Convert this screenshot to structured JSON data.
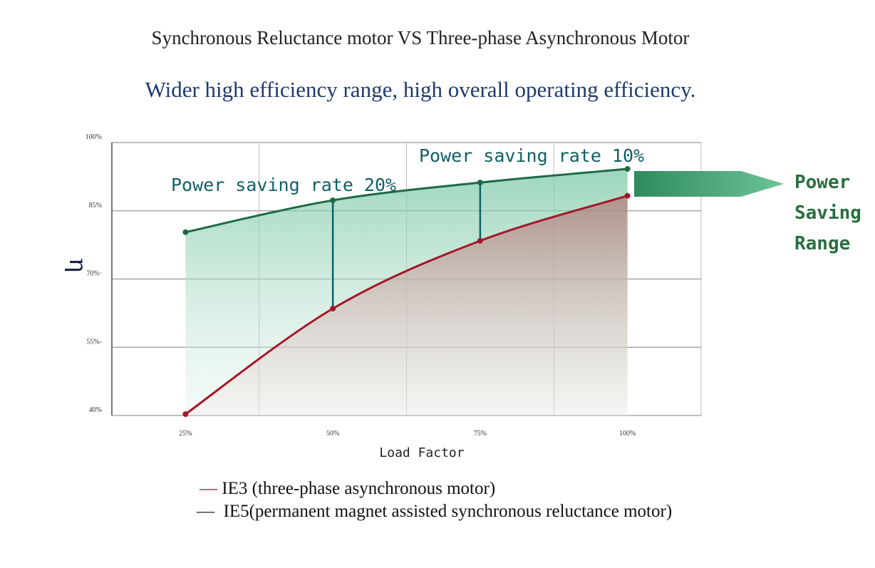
{
  "header": {
    "subtitle": "Synchronous Reluctance motor VS Three-phase Asynchronous Motor",
    "tagline": "Wider high efficiency range, high overall operating efficiency."
  },
  "colors": {
    "ie5": "#1d6a43",
    "ie3": "#a3182b",
    "annotation": "#0e5f66",
    "arrow": "#3a9e6c",
    "tagline": "#1f3a6e"
  },
  "chart_data": {
    "type": "line",
    "title": "Synchronous Reluctance motor VS Three-phase Asynchronous Motor",
    "xlabel": "Load Factor",
    "ylabel": "η",
    "x": [
      25,
      50,
      75,
      100
    ],
    "x_tick_labels": [
      "25%",
      "50%",
      "75%",
      "100%"
    ],
    "y_ticks": [
      40,
      55,
      70,
      85,
      100
    ],
    "y_tick_labels": [
      "40%",
      "55%-",
      "70%·",
      "85%",
      "100%"
    ],
    "xlim": [
      12.5,
      112.5
    ],
    "ylim": [
      40,
      100
    ],
    "grid": true,
    "series": [
      {
        "name": "IE5(permanent magnet assisted synchronous reluctance motor)",
        "values": [
          80.3,
          87.3,
          91.2,
          94.2
        ]
      },
      {
        "name": "IE3 (three-phase asynchronous motor)",
        "values": [
          40.3,
          63.5,
          78.4,
          88.3
        ]
      }
    ],
    "annotations": [
      {
        "text": "Power saving rate 20%",
        "x": 50
      },
      {
        "text": "Power saving rate 10%",
        "x": 75
      }
    ],
    "arrow_label": [
      "Power",
      "Saving",
      "Range"
    ],
    "legend": {
      "placement": "bottom",
      "ie3": "IE3 (three-phase asynchronous motor)",
      "ie5": "IE5(permanent magnet assisted synchronous reluctance motor)"
    }
  }
}
